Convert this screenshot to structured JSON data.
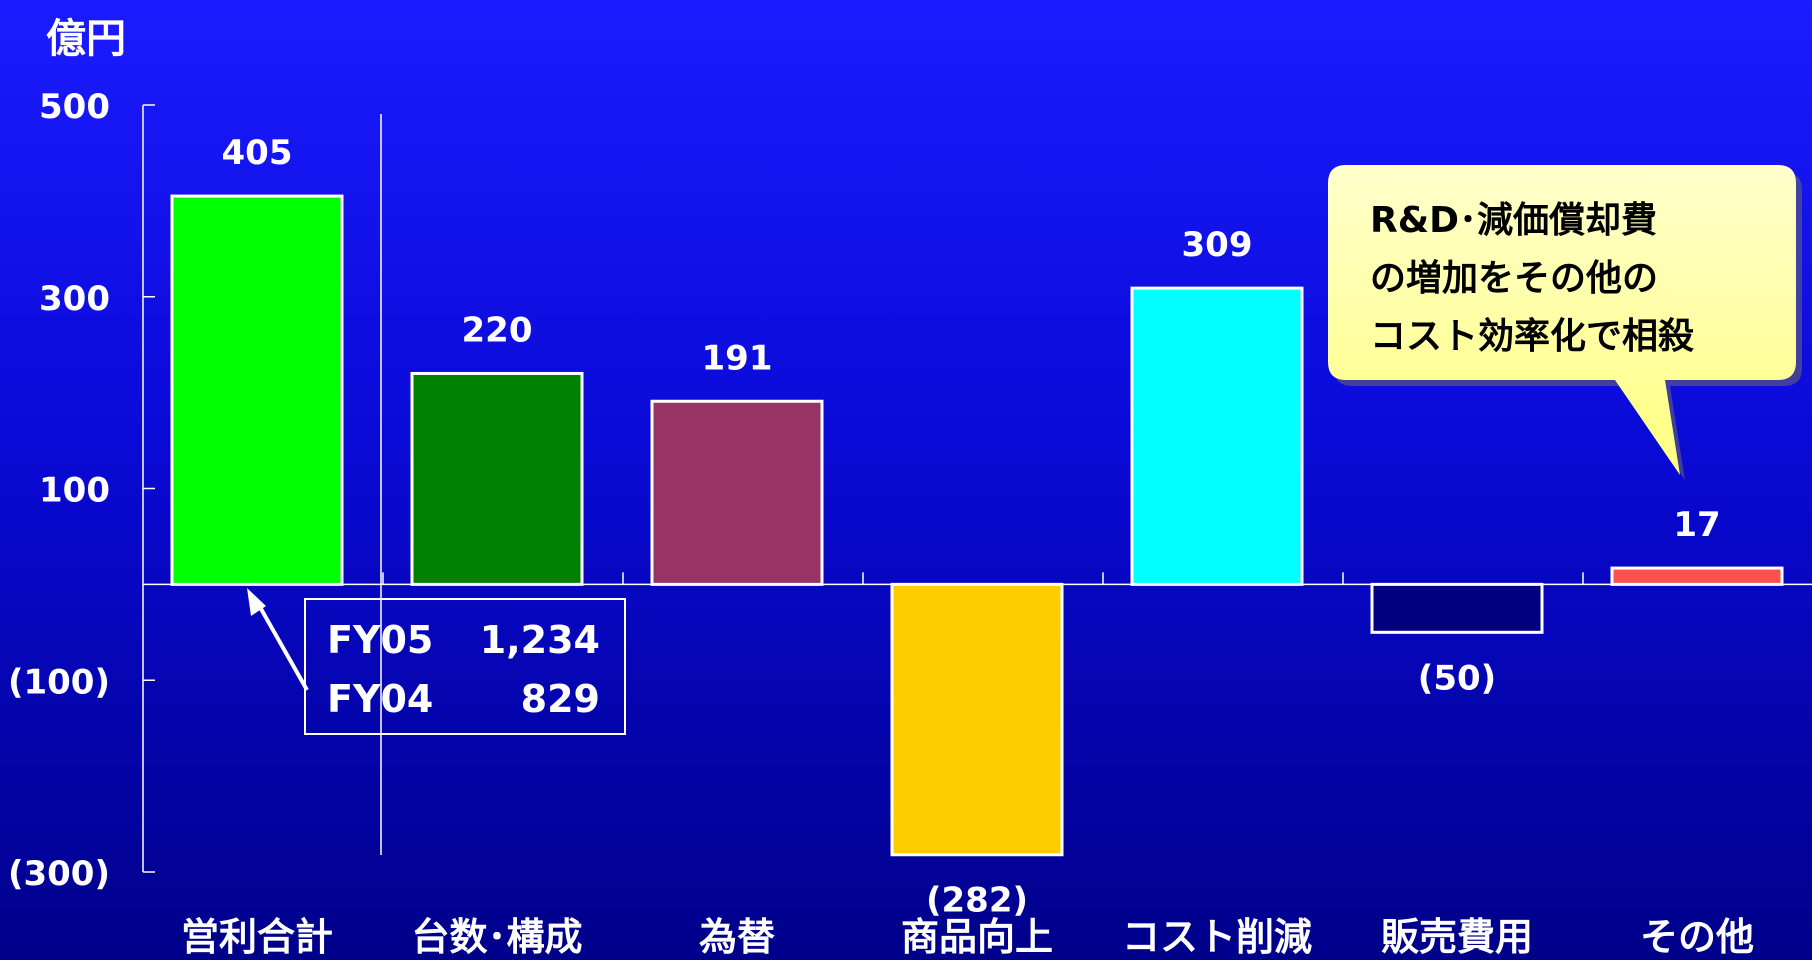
{
  "chart_data": {
    "type": "bar",
    "unit_label": "億円",
    "categories": [
      "営利合計",
      "台数･構成",
      "為替",
      "商品向上",
      "コスト削減",
      "販売費用",
      "その他"
    ],
    "values": [
      405,
      220,
      191,
      -282,
      309,
      -50,
      17
    ],
    "value_labels": [
      "405",
      "220",
      "191",
      "(282)",
      "309",
      "(50)",
      "17"
    ],
    "bar_colors": [
      "#00ff00",
      "#008000",
      "#993366",
      "#ffcc00",
      "#00ffff",
      "#000080",
      "#ff5050"
    ],
    "y_ticks": [
      500,
      300,
      100,
      -100,
      -300
    ],
    "y_tick_labels": [
      "500",
      "300",
      "100",
      "(100)",
      "(300)"
    ],
    "ylim": [
      -300,
      500
    ]
  },
  "inset_box": {
    "rows": [
      {
        "label": "FY05",
        "value": "1,234"
      },
      {
        "label": "FY04",
        "value": "829"
      }
    ]
  },
  "callout": {
    "lines": [
      "R&D･減価償却費",
      "の増加をその他の",
      "コスト効率化で相殺"
    ],
    "fill": "#ffff99"
  }
}
